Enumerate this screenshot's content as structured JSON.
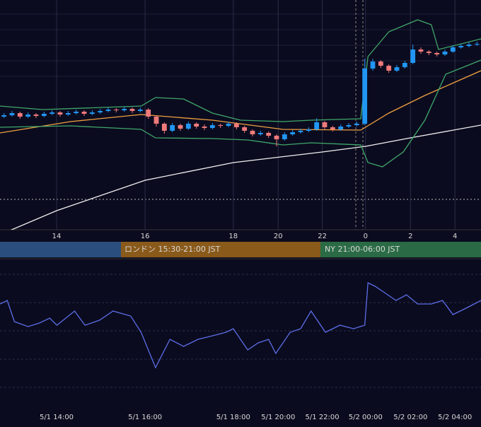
{
  "chart_data": [
    {
      "type": "candlestick",
      "xlim": [
        -0.5,
        59.5
      ],
      "ylim": [
        0,
        325
      ],
      "xticks": [
        {
          "value": 6.56,
          "label": "14"
        },
        {
          "value": 17.6,
          "label": "16"
        },
        {
          "value": 28.6,
          "label": "18"
        },
        {
          "value": 34.2,
          "label": "20"
        },
        {
          "value": 39.7,
          "label": "22"
        },
        {
          "value": 45.1,
          "label": "0"
        },
        {
          "value": 50.7,
          "label": "2"
        },
        {
          "value": 56.25,
          "label": "4"
        }
      ],
      "up_color": "#2196f3",
      "down_color": "#ef7a7a",
      "candles": [
        [
          160,
          165,
          158,
          162
        ],
        [
          162,
          168,
          160,
          165
        ],
        [
          165,
          167,
          157,
          160
        ],
        [
          160,
          166,
          158,
          163
        ],
        [
          163,
          165,
          158,
          161
        ],
        [
          161,
          167,
          159,
          164
        ],
        [
          164,
          169,
          162,
          166
        ],
        [
          166,
          168,
          160,
          163
        ],
        [
          163,
          168,
          161,
          165
        ],
        [
          165,
          170,
          163,
          167
        ],
        [
          167,
          169,
          161,
          164
        ],
        [
          164,
          169,
          162,
          166
        ],
        [
          166,
          171,
          164,
          168
        ],
        [
          168,
          173,
          166,
          170
        ],
        [
          170,
          172,
          166,
          169
        ],
        [
          169,
          174,
          167,
          171
        ],
        [
          171,
          173,
          165,
          168
        ],
        [
          168,
          173,
          166,
          170
        ],
        [
          170,
          172,
          157,
          160
        ],
        [
          160,
          162,
          146,
          150
        ],
        [
          150,
          152,
          136,
          140
        ],
        [
          140,
          151,
          138,
          148
        ],
        [
          148,
          150,
          140,
          143
        ],
        [
          143,
          153,
          141,
          150
        ],
        [
          150,
          152,
          143,
          146
        ],
        [
          146,
          149,
          141,
          144
        ],
        [
          144,
          151,
          142,
          148
        ],
        [
          148,
          150,
          144,
          147
        ],
        [
          147,
          153,
          145,
          150
        ],
        [
          150,
          152,
          142,
          145
        ],
        [
          145,
          147,
          137,
          140
        ],
        [
          140,
          142,
          132,
          135
        ],
        [
          135,
          140,
          133,
          137
        ],
        [
          137,
          139,
          130,
          133
        ],
        [
          133,
          135,
          118,
          128
        ],
        [
          128,
          138,
          126,
          135
        ],
        [
          135,
          141,
          133,
          138
        ],
        [
          138,
          143,
          136,
          140
        ],
        [
          140,
          145,
          138,
          142
        ],
        [
          142,
          158,
          140,
          152
        ],
        [
          152,
          154,
          142,
          145
        ],
        [
          145,
          147,
          139,
          142
        ],
        [
          142,
          149,
          140,
          146
        ],
        [
          146,
          151,
          144,
          148
        ],
        [
          148,
          153,
          146,
          150
        ],
        [
          150,
          242,
          148,
          228
        ],
        [
          228,
          242,
          225,
          238
        ],
        [
          238,
          240,
          229,
          232
        ],
        [
          232,
          234,
          222,
          225
        ],
        [
          225,
          233,
          223,
          230
        ],
        [
          230,
          239,
          228,
          236
        ],
        [
          236,
          262,
          234,
          255
        ],
        [
          255,
          258,
          249,
          252
        ],
        [
          252,
          254,
          247,
          250
        ],
        [
          250,
          252,
          245,
          248
        ],
        [
          248,
          255,
          246,
          252
        ],
        [
          252,
          261,
          250,
          258
        ],
        [
          258,
          263,
          256,
          260
        ],
        [
          260,
          265,
          258,
          262
        ],
        [
          262,
          266,
          260,
          263
        ]
      ],
      "lines": [
        {
          "color": "#f0a040",
          "x": [
            -0.5,
            8.3,
            17.1,
            26.0,
            34.8,
            44.5,
            48.0,
            52.5,
            59.5
          ],
          "values": [
            137,
            153,
            163,
            155,
            142,
            141,
            165,
            190,
            225
          ]
        },
        {
          "color": "#f0f0f0",
          "x": [
            -0.5,
            6.56,
            17.6,
            28.6,
            39.7,
            45.1,
            50.7,
            59.5
          ],
          "values": [
            -7,
            27,
            70,
            95,
            110,
            118,
            130,
            148
          ]
        },
        {
          "color": "#3fa86a",
          "x": [
            -0.5,
            4.8,
            17.1,
            18.9,
            22.4,
            26.0,
            29.5,
            34.8,
            38.3,
            44.5,
            45.4,
            48.0,
            51.6,
            53.3,
            54.2,
            59.5
          ],
          "values": [
            175,
            170,
            175,
            187,
            185,
            165,
            155,
            153,
            155,
            157,
            245,
            280,
            297,
            290,
            255,
            270
          ]
        },
        {
          "color": "#3fa86a",
          "x": [
            -0.5,
            8.3,
            17.1,
            18.9,
            26.0,
            30.4,
            34.8,
            38.3,
            44.5,
            45.4,
            47.2,
            49.8,
            52.5,
            55.1,
            59.5
          ],
          "values": [
            145,
            147,
            142,
            130,
            129,
            127,
            120,
            123,
            120,
            95,
            89,
            110,
            155,
            220,
            240
          ]
        }
      ]
    },
    {
      "type": "line",
      "xlim": [
        -0.5,
        59.5
      ],
      "ylim": [
        0,
        207
      ],
      "color": "#5b6ee8",
      "xticks": [
        {
          "value": 6.56,
          "label": "5/1 14:00"
        },
        {
          "value": 17.6,
          "label": "5/1 16:00"
        },
        {
          "value": 28.6,
          "label": "5/1 18:00"
        },
        {
          "value": 34.2,
          "label": "5/1 20:00"
        },
        {
          "value": 39.7,
          "label": "5/1 22:00"
        },
        {
          "value": 45.1,
          "label": "5/2 00:00"
        },
        {
          "value": 50.7,
          "label": "5/2 02:00"
        },
        {
          "value": 56.25,
          "label": "5/2 04:00"
        }
      ],
      "x": [
        -0.5,
        0.4,
        1.3,
        3.0,
        4.4,
        5.7,
        6.6,
        8.8,
        10.1,
        11.9,
        13.6,
        15.8,
        17.1,
        18.9,
        20.7,
        22.4,
        24.2,
        26.0,
        27.7,
        28.6,
        30.4,
        31.7,
        33.0,
        33.9,
        35.7,
        37.0,
        38.3,
        39.2,
        40.1,
        41.9,
        43.6,
        45.0,
        45.4,
        46.3,
        47.6,
        48.9,
        50.2,
        51.6,
        53.3,
        54.7,
        56.0,
        57.8,
        59.5
      ],
      "values": [
        145,
        150,
        120,
        113,
        118,
        125,
        115,
        135,
        115,
        122,
        135,
        128,
        105,
        55,
        95,
        85,
        95,
        100,
        105,
        110,
        80,
        90,
        95,
        75,
        105,
        110,
        135,
        120,
        105,
        115,
        110,
        115,
        175,
        170,
        160,
        150,
        158,
        145,
        145,
        150,
        130,
        140,
        150
      ]
    }
  ],
  "sessions": [
    "ロンドン 15:30-21:00 JST",
    "NY 21:00-06:00 JST"
  ]
}
